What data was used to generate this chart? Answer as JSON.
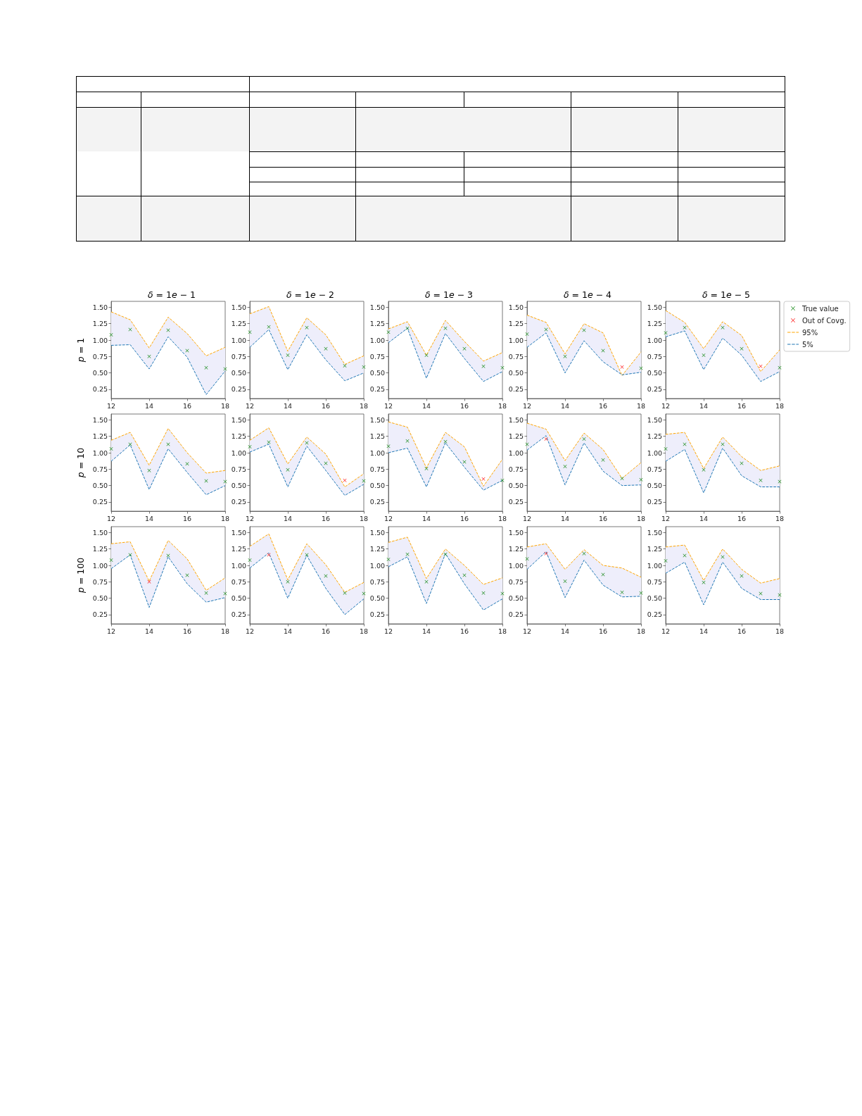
{
  "chart_data": [
    {
      "type": "line",
      "title": "δ = 1e − 1",
      "ylabel": "p = 1",
      "x": [
        12,
        13,
        14,
        15,
        16,
        17,
        18
      ],
      "xlim": [
        12,
        18
      ],
      "xticks": [
        12,
        14,
        16,
        18
      ],
      "ylim": [
        0.11,
        1.59
      ],
      "yticks": [
        0.25,
        {
          "value": 0.5,
          "label": "0.50"
        },
        0.75,
        {
          "value": 1,
          "label": "1.00"
        },
        1.25,
        {
          "value": 1.5,
          "label": "1.50"
        }
      ],
      "series": [
        {
          "type": "scatter",
          "marker": "cross",
          "color": "#008000",
          "values": [
            1.08,
            1.16,
            0.75,
            1.15,
            0.84,
            0.58,
            0.56
          ],
          "lower": [
            0.92,
            0.93,
            0.56,
            1.05,
            0.74,
            0.17,
            0.53
          ],
          "upper": [
            1.43,
            1.31,
            0.88,
            1.35,
            1.1,
            0.76,
            0.89
          ]
        },
        {
          "line_style": "dashed",
          "color": "#ffa500",
          "values": [
            1.43,
            1.31,
            0.88,
            1.35,
            1.1,
            0.76,
            0.89
          ]
        },
        {
          "line_style": "dashed",
          "color": "#1f77b4",
          "values": [
            0.92,
            0.93,
            0.56,
            1.05,
            0.74,
            0.17,
            0.53
          ]
        }
      ]
    },
    {
      "type": "line",
      "title": "δ = 1e − 2",
      "x": [
        12,
        13,
        14,
        15,
        16,
        17,
        18
      ],
      "xlim": [
        12,
        18
      ],
      "xticks": [
        12,
        14,
        16,
        18
      ],
      "ylim": [
        0.11,
        1.59
      ],
      "yticks": [
        0.25,
        {
          "value": 0.5,
          "label": "0.50"
        },
        0.75,
        {
          "value": 1,
          "label": "1.00"
        },
        1.25,
        {
          "value": 1.5,
          "label": "1.50"
        }
      ],
      "series": [
        {
          "type": "scatter",
          "marker": "cross",
          "color": "#008000",
          "values": [
            1.12,
            1.2,
            0.77,
            1.19,
            0.87,
            0.61,
            0.59
          ],
          "lower": [
            0.89,
            1.16,
            0.55,
            1.08,
            0.7,
            0.38,
            0.5
          ],
          "upper": [
            1.4,
            1.51,
            0.83,
            1.34,
            1.08,
            0.63,
            0.76
          ]
        },
        {
          "line_style": "dashed",
          "color": "#ffa500",
          "values": [
            1.4,
            1.51,
            0.83,
            1.34,
            1.08,
            0.63,
            0.76
          ]
        },
        {
          "line_style": "dashed",
          "color": "#1f77b4",
          "values": [
            0.89,
            1.16,
            0.55,
            1.08,
            0.7,
            0.38,
            0.5
          ]
        }
      ]
    },
    {
      "type": "line",
      "title": "δ = 1e − 3",
      "x": [
        12,
        13,
        14,
        15,
        16,
        17,
        18
      ],
      "xlim": [
        12,
        18
      ],
      "xticks": [
        12,
        14,
        16,
        18
      ],
      "ylim": [
        0.11,
        1.59
      ],
      "yticks": [
        0.25,
        {
          "value": 0.5,
          "label": "0.50"
        },
        0.75,
        {
          "value": 1,
          "label": "1.00"
        },
        1.25,
        {
          "value": 1.5,
          "label": "1.50"
        }
      ],
      "series": [
        {
          "type": "scatter",
          "marker": "cross",
          "color": "#008000",
          "values": [
            1.12,
            1.18,
            0.77,
            1.18,
            0.87,
            0.6,
            0.58
          ],
          "lower": [
            0.96,
            1.18,
            0.42,
            1.1,
            0.72,
            0.37,
            0.52
          ],
          "upper": [
            1.17,
            1.28,
            0.77,
            1.3,
            0.98,
            0.68,
            0.81
          ]
        },
        {
          "line_style": "dashed",
          "color": "#ffa500",
          "values": [
            1.17,
            1.28,
            0.77,
            1.3,
            0.98,
            0.68,
            0.81
          ]
        },
        {
          "line_style": "dashed",
          "color": "#1f77b4",
          "values": [
            0.96,
            1.18,
            0.42,
            1.1,
            0.72,
            0.37,
            0.52
          ]
        }
      ]
    },
    {
      "type": "line",
      "title": "δ = 1e − 4",
      "x": [
        12,
        13,
        14,
        15,
        16,
        17,
        18
      ],
      "xlim": [
        12,
        18
      ],
      "xticks": [
        12,
        14,
        16,
        18
      ],
      "ylim": [
        0.11,
        1.59
      ],
      "yticks": [
        0.25,
        {
          "value": 0.5,
          "label": "0.50"
        },
        0.75,
        {
          "value": 1,
          "label": "1.00"
        },
        1.25,
        {
          "value": 1.5,
          "label": "1.50"
        }
      ],
      "series": [
        {
          "type": "scatter",
          "marker": "cross",
          "color": "#008000",
          "values": [
            1.09,
            1.16,
            0.75,
            1.15,
            0.84,
            null,
            0.57
          ],
          "lower": [
            0.89,
            1.11,
            0.5,
            0.99,
            0.67,
            0.47,
            0.51
          ],
          "upper": [
            1.38,
            1.27,
            0.79,
            1.25,
            1.11,
            0.46,
            0.82
          ]
        },
        {
          "type": "scatter",
          "marker": "cross",
          "color": "#ff0000",
          "values": [
            null,
            null,
            null,
            null,
            null,
            0.59,
            null
          ]
        },
        {
          "line_style": "dashed",
          "color": "#ffa500",
          "values": [
            1.38,
            1.27,
            0.79,
            1.25,
            1.11,
            0.46,
            0.82
          ]
        },
        {
          "line_style": "dashed",
          "color": "#1f77b4",
          "values": [
            0.89,
            1.11,
            0.5,
            0.99,
            0.67,
            0.47,
            0.51
          ]
        }
      ]
    },
    {
      "type": "line",
      "title": "δ = 1e − 5",
      "legend": "top right",
      "x": [
        12,
        13,
        14,
        15,
        16,
        17,
        18
      ],
      "xlim": [
        12,
        18
      ],
      "xticks": [
        12,
        14,
        16,
        18
      ],
      "ylim": [
        0.11,
        1.59
      ],
      "yticks": [
        0.25,
        {
          "value": 0.5,
          "label": "0.50"
        },
        0.75,
        {
          "value": 1,
          "label": "1.00"
        },
        1.25,
        {
          "value": 1.5,
          "label": "1.50"
        }
      ],
      "series": [
        {
          "name": "True value",
          "type": "scatter",
          "marker": "cross",
          "color": "#008000",
          "values": [
            1.11,
            1.19,
            0.77,
            1.19,
            0.87,
            null,
            0.58
          ],
          "lower": [
            1.05,
            1.14,
            0.55,
            1.03,
            0.77,
            0.37,
            0.52
          ],
          "upper": [
            1.45,
            1.27,
            0.87,
            1.28,
            1.07,
            0.52,
            0.85
          ]
        },
        {
          "name": "Out of Covg.",
          "type": "scatter",
          "marker": "cross",
          "color": "#ff0000",
          "values": [
            null,
            null,
            null,
            null,
            null,
            0.6,
            null
          ]
        },
        {
          "name": "95%",
          "line_style": "dashed",
          "color": "#ffa500",
          "values": [
            1.45,
            1.27,
            0.87,
            1.28,
            1.07,
            0.52,
            0.85
          ]
        },
        {
          "name": "5%",
          "line_style": "dashed",
          "color": "#1f77b4",
          "values": [
            1.05,
            1.14,
            0.55,
            1.03,
            0.77,
            0.37,
            0.52
          ]
        }
      ]
    },
    {
      "type": "line",
      "ylabel": "p = 10",
      "x": [
        12,
        13,
        14,
        15,
        16,
        17,
        18
      ],
      "xlim": [
        12,
        18
      ],
      "xticks": [
        12,
        14,
        16,
        18
      ],
      "ylim": [
        0.11,
        1.59
      ],
      "yticks": [
        0.25,
        {
          "value": 0.5,
          "label": "0.50"
        },
        0.75,
        {
          "value": 1,
          "label": "1.00"
        },
        1.25,
        {
          "value": 1.5,
          "label": "1.50"
        }
      ],
      "series": [
        {
          "type": "scatter",
          "marker": "cross",
          "color": "#008000",
          "values": [
            1.06,
            1.13,
            0.73,
            1.13,
            0.83,
            0.57,
            0.56
          ],
          "lower": [
            0.87,
            1.12,
            0.44,
            1.06,
            0.7,
            0.36,
            0.5
          ],
          "upper": [
            1.19,
            1.31,
            0.81,
            1.37,
            1.0,
            0.69,
            0.73
          ]
        },
        {
          "line_style": "dashed",
          "color": "#ffa500",
          "values": [
            1.19,
            1.31,
            0.81,
            1.37,
            1.0,
            0.69,
            0.73
          ]
        },
        {
          "line_style": "dashed",
          "color": "#1f77b4",
          "values": [
            0.87,
            1.12,
            0.44,
            1.06,
            0.7,
            0.36,
            0.5
          ]
        }
      ]
    },
    {
      "type": "line",
      "x": [
        12,
        13,
        14,
        15,
        16,
        17,
        18
      ],
      "xlim": [
        12,
        18
      ],
      "xticks": [
        12,
        14,
        16,
        18
      ],
      "ylim": [
        0.11,
        1.59
      ],
      "yticks": [
        0.25,
        {
          "value": 0.5,
          "label": "0.50"
        },
        0.75,
        {
          "value": 1,
          "label": "1.00"
        },
        1.25,
        {
          "value": 1.5,
          "label": "1.50"
        }
      ],
      "series": [
        {
          "type": "scatter",
          "marker": "cross",
          "color": "#008000",
          "values": [
            1.09,
            1.16,
            0.74,
            1.15,
            0.84,
            null,
            0.57
          ],
          "lower": [
            1.01,
            1.13,
            0.48,
            1.1,
            0.73,
            0.35,
            0.52
          ],
          "upper": [
            1.19,
            1.38,
            0.83,
            1.24,
            0.98,
            0.48,
            0.68
          ]
        },
        {
          "type": "scatter",
          "marker": "cross",
          "color": "#ff0000",
          "values": [
            null,
            null,
            null,
            null,
            null,
            0.58,
            null
          ]
        },
        {
          "line_style": "dashed",
          "color": "#ffa500",
          "values": [
            1.19,
            1.38,
            0.83,
            1.24,
            0.98,
            0.48,
            0.68
          ]
        },
        {
          "line_style": "dashed",
          "color": "#1f77b4",
          "values": [
            1.01,
            1.13,
            0.48,
            1.1,
            0.73,
            0.35,
            0.52
          ]
        }
      ]
    },
    {
      "type": "line",
      "x": [
        12,
        13,
        14,
        15,
        16,
        17,
        18
      ],
      "xlim": [
        12,
        18
      ],
      "xticks": [
        12,
        14,
        16,
        18
      ],
      "ylim": [
        0.11,
        1.59
      ],
      "yticks": [
        0.25,
        {
          "value": 0.5,
          "label": "0.50"
        },
        0.75,
        {
          "value": 1,
          "label": "1.00"
        },
        1.25,
        {
          "value": 1.5,
          "label": "1.50"
        }
      ],
      "series": [
        {
          "type": "scatter",
          "marker": "cross",
          "color": "#008000",
          "values": [
            1.1,
            1.18,
            0.76,
            1.17,
            0.86,
            null,
            0.58
          ],
          "lower": [
            1.0,
            1.07,
            0.48,
            1.15,
            0.78,
            0.43,
            0.58
          ],
          "upper": [
            1.47,
            1.39,
            0.77,
            1.31,
            1.09,
            0.49,
            0.9
          ]
        },
        {
          "type": "scatter",
          "marker": "cross",
          "color": "#ff0000",
          "values": [
            null,
            null,
            null,
            null,
            null,
            0.6,
            null
          ]
        },
        {
          "line_style": "dashed",
          "color": "#ffa500",
          "values": [
            1.47,
            1.39,
            0.77,
            1.31,
            1.09,
            0.49,
            0.9
          ]
        },
        {
          "line_style": "dashed",
          "color": "#1f77b4",
          "values": [
            1.0,
            1.07,
            0.48,
            1.15,
            0.78,
            0.43,
            0.58
          ]
        }
      ]
    },
    {
      "type": "line",
      "x": [
        12,
        13,
        14,
        15,
        16,
        17,
        18
      ],
      "xlim": [
        12,
        18
      ],
      "xticks": [
        12,
        14,
        16,
        18
      ],
      "ylim": [
        0.11,
        1.59
      ],
      "yticks": [
        0.25,
        {
          "value": 0.5,
          "label": "0.50"
        },
        0.75,
        {
          "value": 1,
          "label": "1.00"
        },
        1.25,
        {
          "value": 1.5,
          "label": "1.50"
        }
      ],
      "series": [
        {
          "type": "scatter",
          "marker": "cross",
          "color": "#008000",
          "values": [
            1.13,
            null,
            0.79,
            1.21,
            0.89,
            0.61,
            0.59
          ],
          "lower": [
            1.04,
            1.26,
            0.51,
            1.15,
            0.72,
            0.5,
            0.51
          ],
          "upper": [
            1.45,
            1.36,
            0.88,
            1.3,
            1.05,
            0.61,
            0.85
          ]
        },
        {
          "type": "scatter",
          "marker": "cross",
          "color": "#ff0000",
          "values": [
            null,
            1.21,
            null,
            null,
            null,
            null,
            null
          ]
        },
        {
          "line_style": "dashed",
          "color": "#ffa500",
          "values": [
            1.45,
            1.36,
            0.88,
            1.3,
            1.05,
            0.61,
            0.85
          ]
        },
        {
          "line_style": "dashed",
          "color": "#1f77b4",
          "values": [
            1.04,
            1.26,
            0.51,
            1.15,
            0.72,
            0.5,
            0.51
          ]
        }
      ]
    },
    {
      "type": "line",
      "x": [
        12,
        13,
        14,
        15,
        16,
        17,
        18
      ],
      "xlim": [
        12,
        18
      ],
      "xticks": [
        12,
        14,
        16,
        18
      ],
      "ylim": [
        0.11,
        1.59
      ],
      "yticks": [
        0.25,
        {
          "value": 0.5,
          "label": "0.50"
        },
        0.75,
        {
          "value": 1,
          "label": "1.00"
        },
        1.25,
        {
          "value": 1.5,
          "label": "1.50"
        }
      ],
      "series": [
        {
          "type": "scatter",
          "marker": "cross",
          "color": "#008000",
          "values": [
            1.06,
            1.13,
            0.74,
            1.13,
            0.84,
            0.58,
            0.56
          ],
          "lower": [
            0.87,
            1.05,
            0.39,
            1.07,
            0.65,
            0.48,
            0.48
          ],
          "upper": [
            1.28,
            1.31,
            0.76,
            1.24,
            0.94,
            0.73,
            0.8
          ]
        },
        {
          "line_style": "dashed",
          "color": "#ffa500",
          "values": [
            1.28,
            1.31,
            0.76,
            1.24,
            0.94,
            0.73,
            0.8
          ]
        },
        {
          "line_style": "dashed",
          "color": "#1f77b4",
          "values": [
            0.87,
            1.05,
            0.39,
            1.07,
            0.65,
            0.48,
            0.48
          ]
        }
      ]
    },
    {
      "type": "line",
      "ylabel": "p = 100",
      "x": [
        12,
        13,
        14,
        15,
        16,
        17,
        18
      ],
      "xlim": [
        12,
        18
      ],
      "xticks": [
        12,
        14,
        16,
        18
      ],
      "ylim": [
        0.11,
        1.59
      ],
      "yticks": [
        0.25,
        {
          "value": 0.5,
          "label": "0.50"
        },
        0.75,
        {
          "value": 1,
          "label": "1.00"
        },
        1.25,
        {
          "value": 1.5,
          "label": "1.50"
        }
      ],
      "series": [
        {
          "type": "scatter",
          "marker": "cross",
          "color": "#008000",
          "values": [
            1.08,
            1.16,
            null,
            1.15,
            0.85,
            0.58,
            0.57
          ],
          "lower": [
            0.95,
            1.16,
            0.36,
            1.13,
            0.72,
            0.44,
            0.51
          ],
          "upper": [
            1.33,
            1.36,
            0.76,
            1.38,
            1.1,
            0.62,
            0.81
          ]
        },
        {
          "type": "scatter",
          "marker": "cross",
          "color": "#ff0000",
          "values": [
            null,
            null,
            0.75,
            null,
            null,
            null,
            null
          ]
        },
        {
          "line_style": "dashed",
          "color": "#ffa500",
          "values": [
            1.33,
            1.36,
            0.76,
            1.38,
            1.1,
            0.62,
            0.81
          ]
        },
        {
          "line_style": "dashed",
          "color": "#1f77b4",
          "values": [
            0.95,
            1.16,
            0.36,
            1.13,
            0.72,
            0.44,
            0.51
          ]
        }
      ]
    },
    {
      "type": "line",
      "x": [
        12,
        13,
        14,
        15,
        16,
        17,
        18
      ],
      "xlim": [
        12,
        18
      ],
      "xticks": [
        12,
        14,
        16,
        18
      ],
      "ylim": [
        0.11,
        1.59
      ],
      "yticks": [
        0.25,
        {
          "value": 0.5,
          "label": "0.50"
        },
        0.75,
        {
          "value": 1,
          "label": "1.00"
        },
        1.25,
        {
          "value": 1.5,
          "label": "1.50"
        }
      ],
      "series": [
        {
          "type": "scatter",
          "marker": "cross",
          "color": "#008000",
          "values": [
            1.08,
            null,
            0.75,
            1.16,
            0.84,
            0.58,
            0.57
          ],
          "lower": [
            0.96,
            1.19,
            0.5,
            1.15,
            0.65,
            0.25,
            0.49
          ],
          "upper": [
            1.29,
            1.48,
            0.78,
            1.33,
            1.01,
            0.59,
            0.74
          ]
        },
        {
          "type": "scatter",
          "marker": "cross",
          "color": "#ff0000",
          "values": [
            null,
            1.16,
            null,
            null,
            null,
            null,
            null
          ]
        },
        {
          "line_style": "dashed",
          "color": "#ffa500",
          "values": [
            1.29,
            1.48,
            0.78,
            1.33,
            1.01,
            0.59,
            0.74
          ]
        },
        {
          "line_style": "dashed",
          "color": "#1f77b4",
          "values": [
            0.96,
            1.19,
            0.5,
            1.15,
            0.65,
            0.25,
            0.49
          ]
        }
      ]
    },
    {
      "type": "line",
      "x": [
        12,
        13,
        14,
        15,
        16,
        17,
        18
      ],
      "xlim": [
        12,
        18
      ],
      "xticks": [
        12,
        14,
        16,
        18
      ],
      "ylim": [
        0.11,
        1.59
      ],
      "yticks": [
        0.25,
        {
          "value": 0.5,
          "label": "0.50"
        },
        0.75,
        {
          "value": 1,
          "label": "1.00"
        },
        1.25,
        {
          "value": 1.5,
          "label": "1.50"
        }
      ],
      "series": [
        {
          "type": "scatter",
          "marker": "cross",
          "color": "#008000",
          "values": [
            1.09,
            1.17,
            0.75,
            1.17,
            0.85,
            0.58,
            0.57
          ],
          "lower": [
            0.98,
            1.13,
            0.42,
            1.18,
            0.72,
            0.32,
            0.49
          ],
          "upper": [
            1.35,
            1.43,
            0.8,
            1.25,
            1.0,
            0.71,
            0.81
          ]
        },
        {
          "line_style": "dashed",
          "color": "#ffa500",
          "values": [
            1.35,
            1.43,
            0.8,
            1.25,
            1.0,
            0.71,
            0.81
          ]
        },
        {
          "line_style": "dashed",
          "color": "#1f77b4",
          "values": [
            0.98,
            1.13,
            0.42,
            1.18,
            0.72,
            0.32,
            0.49
          ]
        }
      ]
    },
    {
      "type": "line",
      "x": [
        12,
        13,
        14,
        15,
        16,
        17,
        18
      ],
      "xlim": [
        12,
        18
      ],
      "xticks": [
        12,
        14,
        16,
        18
      ],
      "ylim": [
        0.11,
        1.59
      ],
      "yticks": [
        0.25,
        {
          "value": 0.5,
          "label": "0.50"
        },
        0.75,
        {
          "value": 1,
          "label": "1.00"
        },
        1.25,
        {
          "value": 1.5,
          "label": "1.50"
        }
      ],
      "series": [
        {
          "type": "scatter",
          "marker": "cross",
          "color": "#008000",
          "values": [
            1.1,
            null,
            0.76,
            1.18,
            0.86,
            0.59,
            0.58
          ],
          "lower": [
            0.94,
            1.21,
            0.51,
            1.08,
            0.7,
            0.52,
            0.53
          ],
          "upper": [
            1.28,
            1.33,
            0.94,
            1.24,
            1.0,
            0.96,
            0.82
          ]
        },
        {
          "type": "scatter",
          "marker": "cross",
          "color": "#ff0000",
          "values": [
            null,
            1.18,
            null,
            null,
            null,
            null,
            null
          ]
        },
        {
          "line_style": "dashed",
          "color": "#ffa500",
          "values": [
            1.28,
            1.33,
            0.94,
            1.24,
            1.0,
            0.96,
            0.82
          ]
        },
        {
          "line_style": "dashed",
          "color": "#1f77b4",
          "values": [
            0.94,
            1.21,
            0.51,
            1.08,
            0.7,
            0.52,
            0.53
          ]
        }
      ]
    },
    {
      "type": "line",
      "x": [
        12,
        13,
        14,
        15,
        16,
        17,
        18
      ],
      "xlim": [
        12,
        18
      ],
      "xticks": [
        12,
        14,
        16,
        18
      ],
      "ylim": [
        0.11,
        1.59
      ],
      "yticks": [
        0.25,
        {
          "value": 0.5,
          "label": "0.50"
        },
        0.75,
        {
          "value": 1,
          "label": "1.00"
        },
        1.25,
        {
          "value": 1.5,
          "label": "1.50"
        }
      ],
      "series": [
        {
          "type": "scatter",
          "marker": "cross",
          "color": "#008000",
          "values": [
            1.07,
            1.15,
            0.74,
            1.13,
            0.84,
            0.57,
            0.55
          ],
          "lower": [
            0.88,
            1.05,
            0.4,
            1.05,
            0.65,
            0.48,
            0.48
          ],
          "upper": [
            1.28,
            1.31,
            0.77,
            1.25,
            0.94,
            0.73,
            0.8
          ]
        },
        {
          "line_style": "dashed",
          "color": "#ffa500",
          "values": [
            1.28,
            1.31,
            0.77,
            1.25,
            0.94,
            0.73,
            0.8
          ]
        },
        {
          "line_style": "dashed",
          "color": "#1f77b4",
          "values": [
            0.88,
            1.05,
            0.4,
            1.05,
            0.65,
            0.48,
            0.48
          ]
        }
      ]
    }
  ]
}
